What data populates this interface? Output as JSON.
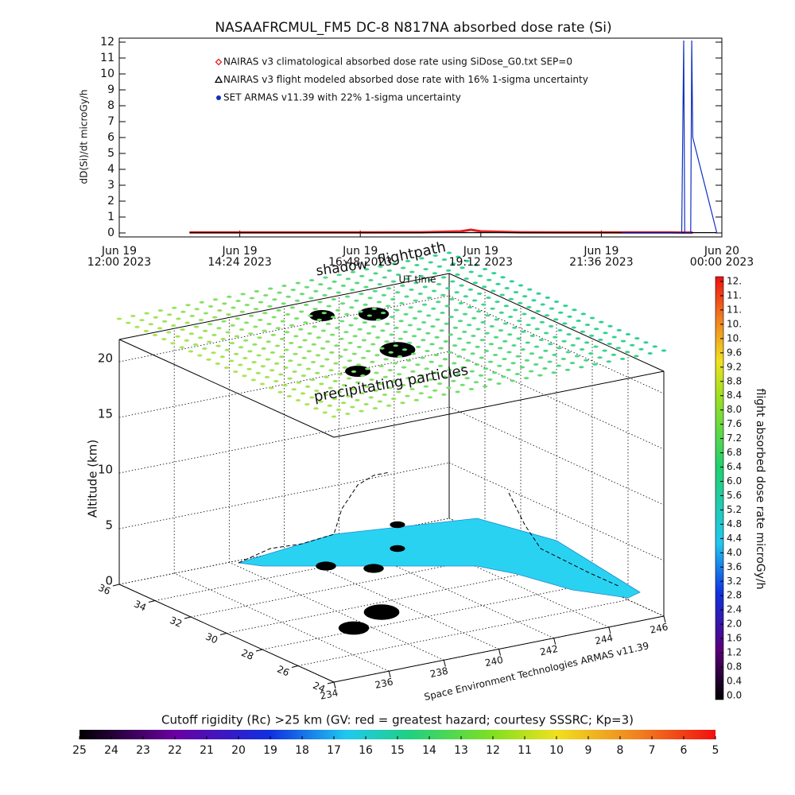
{
  "chart_data": [
    {
      "type": "line",
      "title": "NASAAFRCMUL_FM5 DC-8   N817NA absorbed dose rate (Si)",
      "y_label": "dD(Si)/dt microGy/h",
      "x_label": "UT time",
      "x": [
        13.4,
        14,
        15,
        16,
        17,
        18,
        18.8,
        19,
        19.2,
        20,
        21,
        22,
        23,
        23.2,
        23.24,
        23.26,
        23.38,
        23.4,
        23.42,
        23.9
      ],
      "xlim": [
        12,
        24
      ],
      "xticks": [
        {
          "value": 12,
          "label": [
            "Jun 19",
            "12:00 2023"
          ]
        },
        {
          "value": 14.4,
          "label": [
            "Jun 19",
            "14:24 2023"
          ]
        },
        {
          "value": 16.8,
          "label": [
            "Jun 19",
            "16:48 2023"
          ]
        },
        {
          "value": 19.2,
          "label": [
            "Jun 19",
            "19:12 2023"
          ]
        },
        {
          "value": 21.6,
          "label": [
            "Jun 19",
            "21:36 2023"
          ]
        },
        {
          "value": 24,
          "label": [
            "Jun 20",
            "00:00 2023"
          ]
        }
      ],
      "ylim": [
        -0.25,
        12.25
      ],
      "yticks": [
        0,
        1,
        2,
        3,
        4,
        5,
        6,
        7,
        8,
        9,
        10,
        11,
        12
      ],
      "series": [
        {
          "name": "NAIRAS v3 climatological absorbed dose rate using SiDose_G0.txt SEP=0",
          "color": "#e02020",
          "marker": "diamond",
          "values": [
            0.03,
            0.03,
            0.03,
            0.03,
            0.03,
            0.04,
            0.1,
            0.2,
            0.1,
            0.04,
            0.03,
            0.03,
            0.03,
            0.02,
            0.02,
            0.02,
            0.02,
            0.02,
            0.02,
            null
          ]
        },
        {
          "name": "NAIRAS v3 flight modeled absorbed dose rate with 16% 1-sigma uncertainty",
          "color": "#000000",
          "marker": "triangle",
          "values": [
            0.02,
            0.02,
            0.02,
            0.02,
            0.02,
            0.02,
            0.02,
            0.02,
            0.02,
            0.02,
            0.02,
            0.02,
            0.02,
            0.02,
            0.02,
            0.02,
            0.02,
            0.02,
            0.02,
            0.02
          ]
        },
        {
          "name": "SET ARMAS v11.39 with 22% 1-sigma uncertainty",
          "color": "#1030c0",
          "marker": "dot",
          "values": [
            null,
            null,
            null,
            null,
            null,
            null,
            null,
            null,
            null,
            null,
            null,
            0,
            0,
            0,
            12.1,
            0,
            0,
            12.1,
            6,
            0
          ]
        }
      ]
    },
    {
      "type": "surface3d",
      "z_label": "Altitude (km)",
      "zlim": [
        0,
        22
      ],
      "zticks": [
        0,
        5,
        10,
        15,
        20
      ],
      "latlim": [
        24,
        36
      ],
      "lat_ticks": [
        36,
        34,
        32,
        30,
        28,
        26,
        24
      ],
      "lonlim": [
        234,
        246
      ],
      "lon_ticks": [
        234,
        236,
        238,
        240,
        242,
        244,
        246
      ],
      "credit": "Space Environment Technologies ARMAS v11.39",
      "annotations": [
        "shadow",
        "flightpath",
        "precipitating particles"
      ]
    },
    {
      "type": "colorbar",
      "label": "flight absorbed dose rate microGy/h",
      "clim": [
        0,
        11.6
      ],
      "ticks": [
        {
          "value": 0,
          "label": "0.0"
        },
        {
          "value": 0.4,
          "label": "0.4"
        },
        {
          "value": 0.8,
          "label": "0.8"
        },
        {
          "value": 1.2,
          "label": "1.2"
        },
        {
          "value": 1.6,
          "label": "1.6"
        },
        {
          "value": 2.0,
          "label": "2.0"
        },
        {
          "value": 2.4,
          "label": "2.4"
        },
        {
          "value": 2.8,
          "label": "2.8"
        },
        {
          "value": 3.2,
          "label": "3.2"
        },
        {
          "value": 3.6,
          "label": "3.6"
        },
        {
          "value": 4.0,
          "label": "4.0"
        },
        {
          "value": 4.4,
          "label": "4.4"
        },
        {
          "value": 4.8,
          "label": "4.8"
        },
        {
          "value": 5.2,
          "label": "5.2"
        },
        {
          "value": 5.6,
          "label": "5.6"
        },
        {
          "value": 6.0,
          "label": "6.0"
        },
        {
          "value": 6.4,
          "label": "6.4"
        },
        {
          "value": 6.8,
          "label": "6.8"
        },
        {
          "value": 7.2,
          "label": "7.2"
        },
        {
          "value": 7.6,
          "label": "7.6"
        },
        {
          "value": 8.0,
          "label": "8.0"
        },
        {
          "value": 8.4,
          "label": "8.4"
        },
        {
          "value": 8.8,
          "label": "8.8"
        },
        {
          "value": 9.2,
          "label": "9.2"
        },
        {
          "value": 9.6,
          "label": "9.6"
        },
        {
          "value": 10.0,
          "label": "10."
        },
        {
          "value": 10.4,
          "label": "10."
        },
        {
          "value": 10.8,
          "label": "11."
        },
        {
          "value": 11.2,
          "label": "11."
        },
        {
          "value": 11.6,
          "label": "12."
        }
      ]
    },
    {
      "type": "colorbar",
      "label": "Cutoff rigidity (Rc) >25 km (GV: red = greatest hazard; courtesy SSSRC; Kp=3)",
      "clim": [
        25,
        5
      ],
      "ticks": [
        25,
        24,
        23,
        22,
        21,
        20,
        19,
        18,
        17,
        16,
        15,
        14,
        13,
        12,
        11,
        10,
        9,
        8,
        7,
        6,
        5
      ]
    }
  ]
}
